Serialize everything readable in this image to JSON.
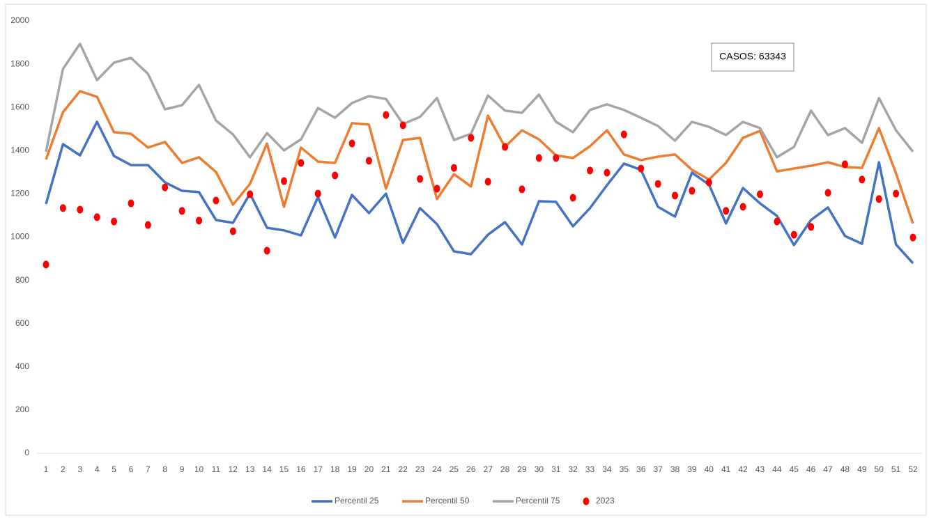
{
  "chart_data": {
    "type": "line",
    "categories": [
      1,
      2,
      3,
      4,
      5,
      6,
      7,
      8,
      9,
      10,
      11,
      12,
      13,
      14,
      15,
      16,
      17,
      18,
      19,
      20,
      21,
      22,
      23,
      24,
      25,
      26,
      27,
      28,
      29,
      30,
      31,
      32,
      33,
      34,
      35,
      36,
      37,
      38,
      39,
      40,
      41,
      42,
      43,
      44,
      45,
      46,
      47,
      48,
      49,
      50,
      51,
      52
    ],
    "ylim": [
      0,
      2000
    ],
    "yticks": [
      0,
      200,
      400,
      600,
      800,
      1000,
      1200,
      1400,
      1600,
      1800,
      2000
    ],
    "grid": false,
    "annotation": "CASOS: 63343",
    "legend": "bottom",
    "series": [
      {
        "name": "Percentil 25",
        "color": "#4472c4",
        "mode": "line",
        "values": [
          1153,
          1430,
          1378,
          1533,
          1375,
          1333,
          1333,
          1253,
          1214,
          1208,
          1079,
          1066,
          1201,
          1043,
          1031,
          1008,
          1185,
          998,
          1195,
          1111,
          1201,
          973,
          1134,
          1060,
          934,
          921,
          1011,
          1069,
          966,
          1166,
          1163,
          1050,
          1134,
          1240,
          1340,
          1311,
          1140,
          1095,
          1298,
          1243,
          1063,
          1227,
          1156,
          1098,
          963,
          1079,
          1137,
          1005,
          969,
          1346,
          966,
          879
        ]
      },
      {
        "name": "Percentil 50",
        "color": "#ed7d31",
        "mode": "line",
        "values": [
          1359,
          1578,
          1675,
          1649,
          1485,
          1478,
          1414,
          1440,
          1343,
          1369,
          1301,
          1150,
          1246,
          1433,
          1140,
          1414,
          1349,
          1343,
          1527,
          1520,
          1224,
          1449,
          1459,
          1176,
          1291,
          1234,
          1562,
          1417,
          1494,
          1452,
          1378,
          1366,
          1420,
          1494,
          1382,
          1356,
          1372,
          1382,
          1311,
          1266,
          1343,
          1459,
          1491,
          1304,
          1317,
          1330,
          1346,
          1324,
          1320,
          1504,
          1295,
          1063
        ]
      },
      {
        "name": "Percentil 75",
        "color": "#a5a5a5",
        "mode": "line",
        "values": [
          1395,
          1778,
          1894,
          1726,
          1807,
          1829,
          1755,
          1591,
          1610,
          1704,
          1539,
          1475,
          1369,
          1481,
          1401,
          1452,
          1597,
          1552,
          1620,
          1652,
          1639,
          1523,
          1556,
          1643,
          1449,
          1478,
          1655,
          1585,
          1575,
          1659,
          1533,
          1485,
          1588,
          1614,
          1588,
          1552,
          1514,
          1446,
          1533,
          1510,
          1472,
          1533,
          1504,
          1369,
          1417,
          1585,
          1472,
          1504,
          1436,
          1643,
          1494,
          1395
        ]
      },
      {
        "name": "2023",
        "color": "#ff0000",
        "mode": "markers",
        "values": [
          873,
          1134,
          1127,
          1092,
          1072,
          1156,
          1056,
          1230,
          1121,
          1076,
          1169,
          1027,
          1198,
          937,
          1259,
          1343,
          1201,
          1285,
          1433,
          1353,
          1565,
          1517,
          1269,
          1224,
          1320,
          1459,
          1256,
          1417,
          1221,
          1366,
          1366,
          1182,
          1308,
          1298,
          1475,
          1317,
          1246,
          1192,
          1214,
          1253,
          1121,
          1140,
          1198,
          1072,
          1011,
          1047,
          1205,
          1337,
          1266,
          1176,
          1201,
          998
        ]
      }
    ]
  }
}
